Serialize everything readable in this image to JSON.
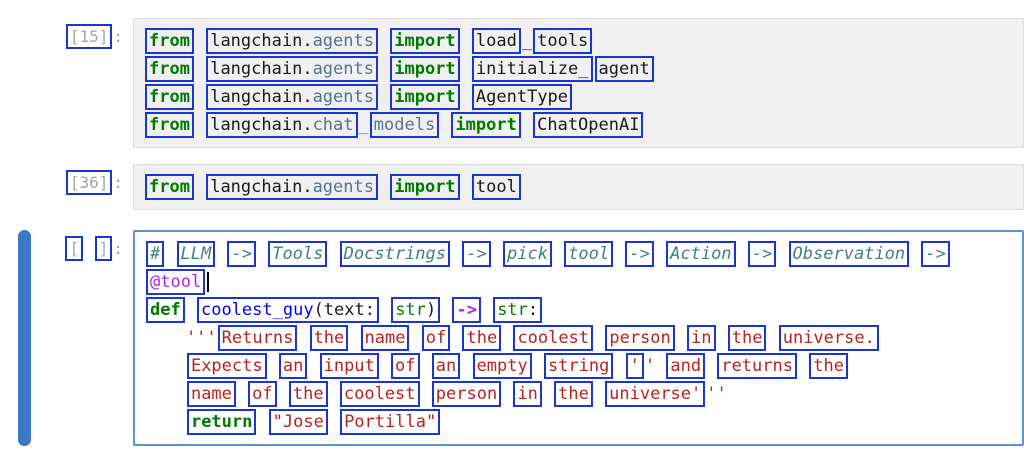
{
  "app": "jupyter-notebook",
  "annotation_box_color": "#1b35d2",
  "colors": {
    "keyword": "#007b00",
    "string": "#ba2121",
    "comment": "#408080",
    "operator": "#aa22ff",
    "decorator": "#aa22ff",
    "function_def": "#0000ff",
    "builtin": "#008000",
    "property": "#4f7596",
    "plain_text": "#1a1a1a",
    "prompt_gray": "#a6a6a6",
    "cell_background": "#f0f0f0",
    "selected_cell_border": "#5b93d2",
    "selected_cell_bar": "#3b79c4"
  },
  "cells": [
    {
      "selected": false,
      "prompt": [
        {
          "t": "[15]",
          "c": "prompt",
          "b": 1
        },
        {
          "t": ":",
          "c": "prompt"
        }
      ],
      "lines": [
        [
          {
            "t": "from",
            "c": "kw",
            "b": 1
          },
          {
            "t": " "
          },
          {
            "m": [
              {
                "t": "langchain.",
                "c": "plain"
              },
              {
                "t": "agents",
                "c": "prop"
              }
            ],
            "b": 1
          },
          {
            "t": " "
          },
          {
            "t": "import",
            "c": "kw",
            "b": 1
          },
          {
            "t": " "
          },
          {
            "t": "load",
            "c": "plain",
            "b": 1
          },
          {
            "t": "_",
            "c": "plain"
          },
          {
            "t": "tools",
            "c": "plain",
            "b": 1
          }
        ],
        [
          {
            "t": "from",
            "c": "kw",
            "b": 1
          },
          {
            "t": " "
          },
          {
            "m": [
              {
                "t": "langchain.",
                "c": "plain"
              },
              {
                "t": "agents",
                "c": "prop"
              }
            ],
            "b": 1
          },
          {
            "t": " "
          },
          {
            "t": "import",
            "c": "kw",
            "b": 1
          },
          {
            "t": " "
          },
          {
            "t": "initialize_",
            "c": "plain",
            "b": 1
          },
          {
            "t": "agent",
            "c": "plain",
            "b": 1
          }
        ],
        [
          {
            "t": "from",
            "c": "kw",
            "b": 1
          },
          {
            "t": " "
          },
          {
            "m": [
              {
                "t": "langchain.",
                "c": "plain"
              },
              {
                "t": "agents",
                "c": "prop"
              }
            ],
            "b": 1
          },
          {
            "t": " "
          },
          {
            "t": "import",
            "c": "kw",
            "b": 1
          },
          {
            "t": " "
          },
          {
            "t": "AgentType",
            "c": "plain",
            "b": 1
          }
        ],
        [
          {
            "t": "from",
            "c": "kw",
            "b": 1
          },
          {
            "t": " "
          },
          {
            "m": [
              {
                "t": "langchain.",
                "c": "plain"
              },
              {
                "t": "chat",
                "c": "prop"
              }
            ],
            "b": 1
          },
          {
            "t": "_",
            "c": "prop"
          },
          {
            "t": "models",
            "c": "prop",
            "b": 1
          },
          {
            "t": " "
          },
          {
            "t": "import",
            "c": "kw",
            "b": 1
          },
          {
            "t": " "
          },
          {
            "t": "ChatOpenAI",
            "c": "plain",
            "b": 1
          }
        ]
      ]
    },
    {
      "selected": false,
      "prompt": [
        {
          "t": "[36]",
          "c": "prompt",
          "b": 1
        },
        {
          "t": ":",
          "c": "prompt"
        }
      ],
      "lines": [
        [
          {
            "t": "from",
            "c": "kw",
            "b": 1
          },
          {
            "t": " "
          },
          {
            "m": [
              {
                "t": "langchain.",
                "c": "plain"
              },
              {
                "t": "agents",
                "c": "prop"
              }
            ],
            "b": 1
          },
          {
            "t": " "
          },
          {
            "t": "import",
            "c": "kw",
            "b": 1
          },
          {
            "t": " "
          },
          {
            "t": "tool",
            "c": "plain",
            "b": 1
          }
        ]
      ]
    },
    {
      "selected": true,
      "prompt": [
        {
          "t": "[",
          "c": "prompt",
          "b": 1
        },
        {
          "t": " ",
          "c": "prompt"
        },
        {
          "t": "]",
          "c": "prompt",
          "b": 1
        },
        {
          "t": ":",
          "c": "prompt"
        }
      ],
      "lines": [
        [
          {
            "t": "#",
            "c": "com",
            "b": 1
          },
          {
            "t": " "
          },
          {
            "t": "LLM",
            "c": "com",
            "b": 1
          },
          {
            "t": " "
          },
          {
            "t": "->",
            "c": "com",
            "b": 1
          },
          {
            "t": " "
          },
          {
            "t": "Tools",
            "c": "com",
            "b": 1
          },
          {
            "t": " "
          },
          {
            "t": "Docstrings",
            "c": "com",
            "b": 1
          },
          {
            "t": " "
          },
          {
            "t": "->",
            "c": "com",
            "b": 1
          },
          {
            "t": " "
          },
          {
            "t": "pick",
            "c": "com",
            "b": 1
          },
          {
            "t": " "
          },
          {
            "t": "tool",
            "c": "com",
            "b": 1
          },
          {
            "t": " "
          },
          {
            "t": "->",
            "c": "com",
            "b": 1
          },
          {
            "t": " "
          },
          {
            "t": "Action",
            "c": "com",
            "b": 1
          },
          {
            "t": " "
          },
          {
            "t": "->",
            "c": "com",
            "b": 1
          },
          {
            "t": " "
          },
          {
            "t": "Observation",
            "c": "com",
            "b": 1
          },
          {
            "t": " "
          },
          {
            "t": "->",
            "c": "com",
            "b": 1
          }
        ],
        [
          {
            "t": "@tool",
            "c": "dec",
            "b": 1
          },
          {
            "cursor": true
          }
        ],
        [
          {
            "t": "def",
            "c": "kw",
            "b": 1
          },
          {
            "t": " "
          },
          {
            "m": [
              {
                "t": "coolest_guy",
                "c": "def"
              },
              {
                "t": "(text:",
                "c": "plain"
              }
            ],
            "b": 1
          },
          {
            "t": " "
          },
          {
            "m": [
              {
                "t": "str",
                "c": "bi"
              },
              {
                "t": ")",
                "c": "plain"
              }
            ],
            "b": 1
          },
          {
            "t": " "
          },
          {
            "t": "->",
            "c": "op",
            "b": 1
          },
          {
            "t": " "
          },
          {
            "m": [
              {
                "t": "str",
                "c": "bi"
              },
              {
                "t": ":",
                "c": "plain"
              }
            ],
            "b": 1
          }
        ],
        [
          {
            "t": "    '''",
            "c": "str"
          },
          {
            "t": "Returns",
            "c": "str",
            "b": 1
          },
          {
            "t": " "
          },
          {
            "t": "the",
            "c": "str",
            "b": 1
          },
          {
            "t": " "
          },
          {
            "t": "name",
            "c": "str",
            "b": 1
          },
          {
            "t": " "
          },
          {
            "t": "of",
            "c": "str",
            "b": 1
          },
          {
            "t": " "
          },
          {
            "t": "the",
            "c": "str",
            "b": 1
          },
          {
            "t": " "
          },
          {
            "t": "coolest",
            "c": "str",
            "b": 1
          },
          {
            "t": " "
          },
          {
            "t": "person",
            "c": "str",
            "b": 1
          },
          {
            "t": " "
          },
          {
            "t": "in",
            "c": "str",
            "b": 1
          },
          {
            "t": " "
          },
          {
            "t": "the",
            "c": "str",
            "b": 1
          },
          {
            "t": " "
          },
          {
            "t": "universe.",
            "c": "str",
            "b": 1
          }
        ],
        [
          {
            "t": "    ",
            "c": "str"
          },
          {
            "t": "Expects",
            "c": "str",
            "b": 1
          },
          {
            "t": " "
          },
          {
            "t": "an",
            "c": "str",
            "b": 1
          },
          {
            "t": " "
          },
          {
            "t": "input",
            "c": "str",
            "b": 1
          },
          {
            "t": " "
          },
          {
            "t": "of",
            "c": "str",
            "b": 1
          },
          {
            "t": " "
          },
          {
            "t": "an",
            "c": "str",
            "b": 1
          },
          {
            "t": " "
          },
          {
            "t": "empty",
            "c": "str",
            "b": 1
          },
          {
            "t": " "
          },
          {
            "t": "string",
            "c": "str",
            "b": 1
          },
          {
            "t": " "
          },
          {
            "t": "'",
            "c": "str",
            "b": 1
          },
          {
            "t": "'",
            "c": "str"
          },
          {
            "t": " "
          },
          {
            "t": "and",
            "c": "str",
            "b": 1
          },
          {
            "t": " "
          },
          {
            "t": "returns",
            "c": "str",
            "b": 1
          },
          {
            "t": " "
          },
          {
            "t": "the",
            "c": "str",
            "b": 1
          }
        ],
        [
          {
            "t": "    ",
            "c": "str"
          },
          {
            "t": "name",
            "c": "str",
            "b": 1
          },
          {
            "t": " "
          },
          {
            "t": "of",
            "c": "str",
            "b": 1
          },
          {
            "t": " "
          },
          {
            "t": "the",
            "c": "str",
            "b": 1
          },
          {
            "t": " "
          },
          {
            "t": "coolest",
            "c": "str",
            "b": 1
          },
          {
            "t": " "
          },
          {
            "t": "person",
            "c": "str",
            "b": 1
          },
          {
            "t": " "
          },
          {
            "t": "in",
            "c": "str",
            "b": 1
          },
          {
            "t": " "
          },
          {
            "t": "the",
            "c": "str",
            "b": 1
          },
          {
            "t": " "
          },
          {
            "t": "universe'",
            "c": "str",
            "b": 1
          },
          {
            "t": "''",
            "c": "str"
          }
        ],
        [
          {
            "t": "    ",
            "c": "plain"
          },
          {
            "t": "return",
            "c": "kw",
            "b": 1
          },
          {
            "t": " "
          },
          {
            "t": "\"Jose",
            "c": "str",
            "b": 1
          },
          {
            "t": " "
          },
          {
            "t": "Portilla\"",
            "c": "str",
            "b": 1
          }
        ]
      ]
    }
  ]
}
